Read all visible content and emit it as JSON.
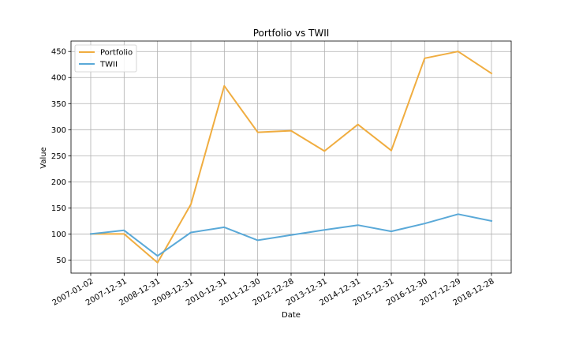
{
  "chart_data": {
    "type": "line",
    "title": "Portfolio vs TWII",
    "xlabel": "Date",
    "ylabel": "Value",
    "ylim": [
      25,
      470
    ],
    "yticks": [
      50,
      100,
      150,
      200,
      250,
      300,
      350,
      400,
      450
    ],
    "grid": true,
    "legend_position": "top-left",
    "categories": [
      "2007-01-02",
      "2007-12-31",
      "2008-12-31",
      "2009-12-31",
      "2010-12-31",
      "2011-12-30",
      "2012-12-28",
      "2013-12-31",
      "2014-12-31",
      "2015-12-31",
      "2016-12-30",
      "2017-12-29",
      "2018-12-28"
    ],
    "series": [
      {
        "name": "Portfolio",
        "color": "#f0ad40",
        "values": [
          100,
          100,
          45,
          157,
          384,
          295,
          298,
          259,
          310,
          260,
          437,
          450,
          408
        ]
      },
      {
        "name": "TWII",
        "color": "#5aa9d8",
        "values": [
          100,
          107,
          58,
          103,
          113,
          88,
          98,
          108,
          117,
          105,
          120,
          138,
          125
        ]
      }
    ]
  }
}
